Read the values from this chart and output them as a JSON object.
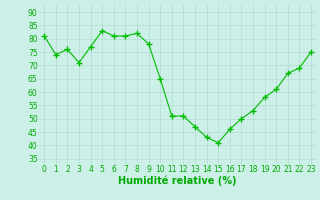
{
  "x": [
    0,
    1,
    2,
    3,
    4,
    5,
    6,
    7,
    8,
    9,
    10,
    11,
    12,
    13,
    14,
    15,
    16,
    17,
    18,
    19,
    20,
    21,
    22,
    23
  ],
  "y": [
    81,
    74,
    76,
    71,
    77,
    83,
    81,
    81,
    82,
    78,
    65,
    51,
    51,
    47,
    43,
    41,
    46,
    50,
    53,
    58,
    61,
    67,
    69,
    75
  ],
  "line_color": "#00bb00",
  "marker": "+",
  "marker_size": 4,
  "marker_lw": 1.0,
  "bg_color": "#ccf0e8",
  "grid_color": "#aad8cc",
  "xlabel": "Humidité relative (%)",
  "xlabel_color": "#00aa00",
  "ylabel_ticks": [
    35,
    40,
    45,
    50,
    55,
    60,
    65,
    70,
    75,
    80,
    85,
    90
  ],
  "ylim": [
    33,
    93
  ],
  "xlim": [
    -0.5,
    23.5
  ],
  "tick_color": "#00aa00",
  "label_fontsize": 5.5,
  "xlabel_fontsize": 7
}
